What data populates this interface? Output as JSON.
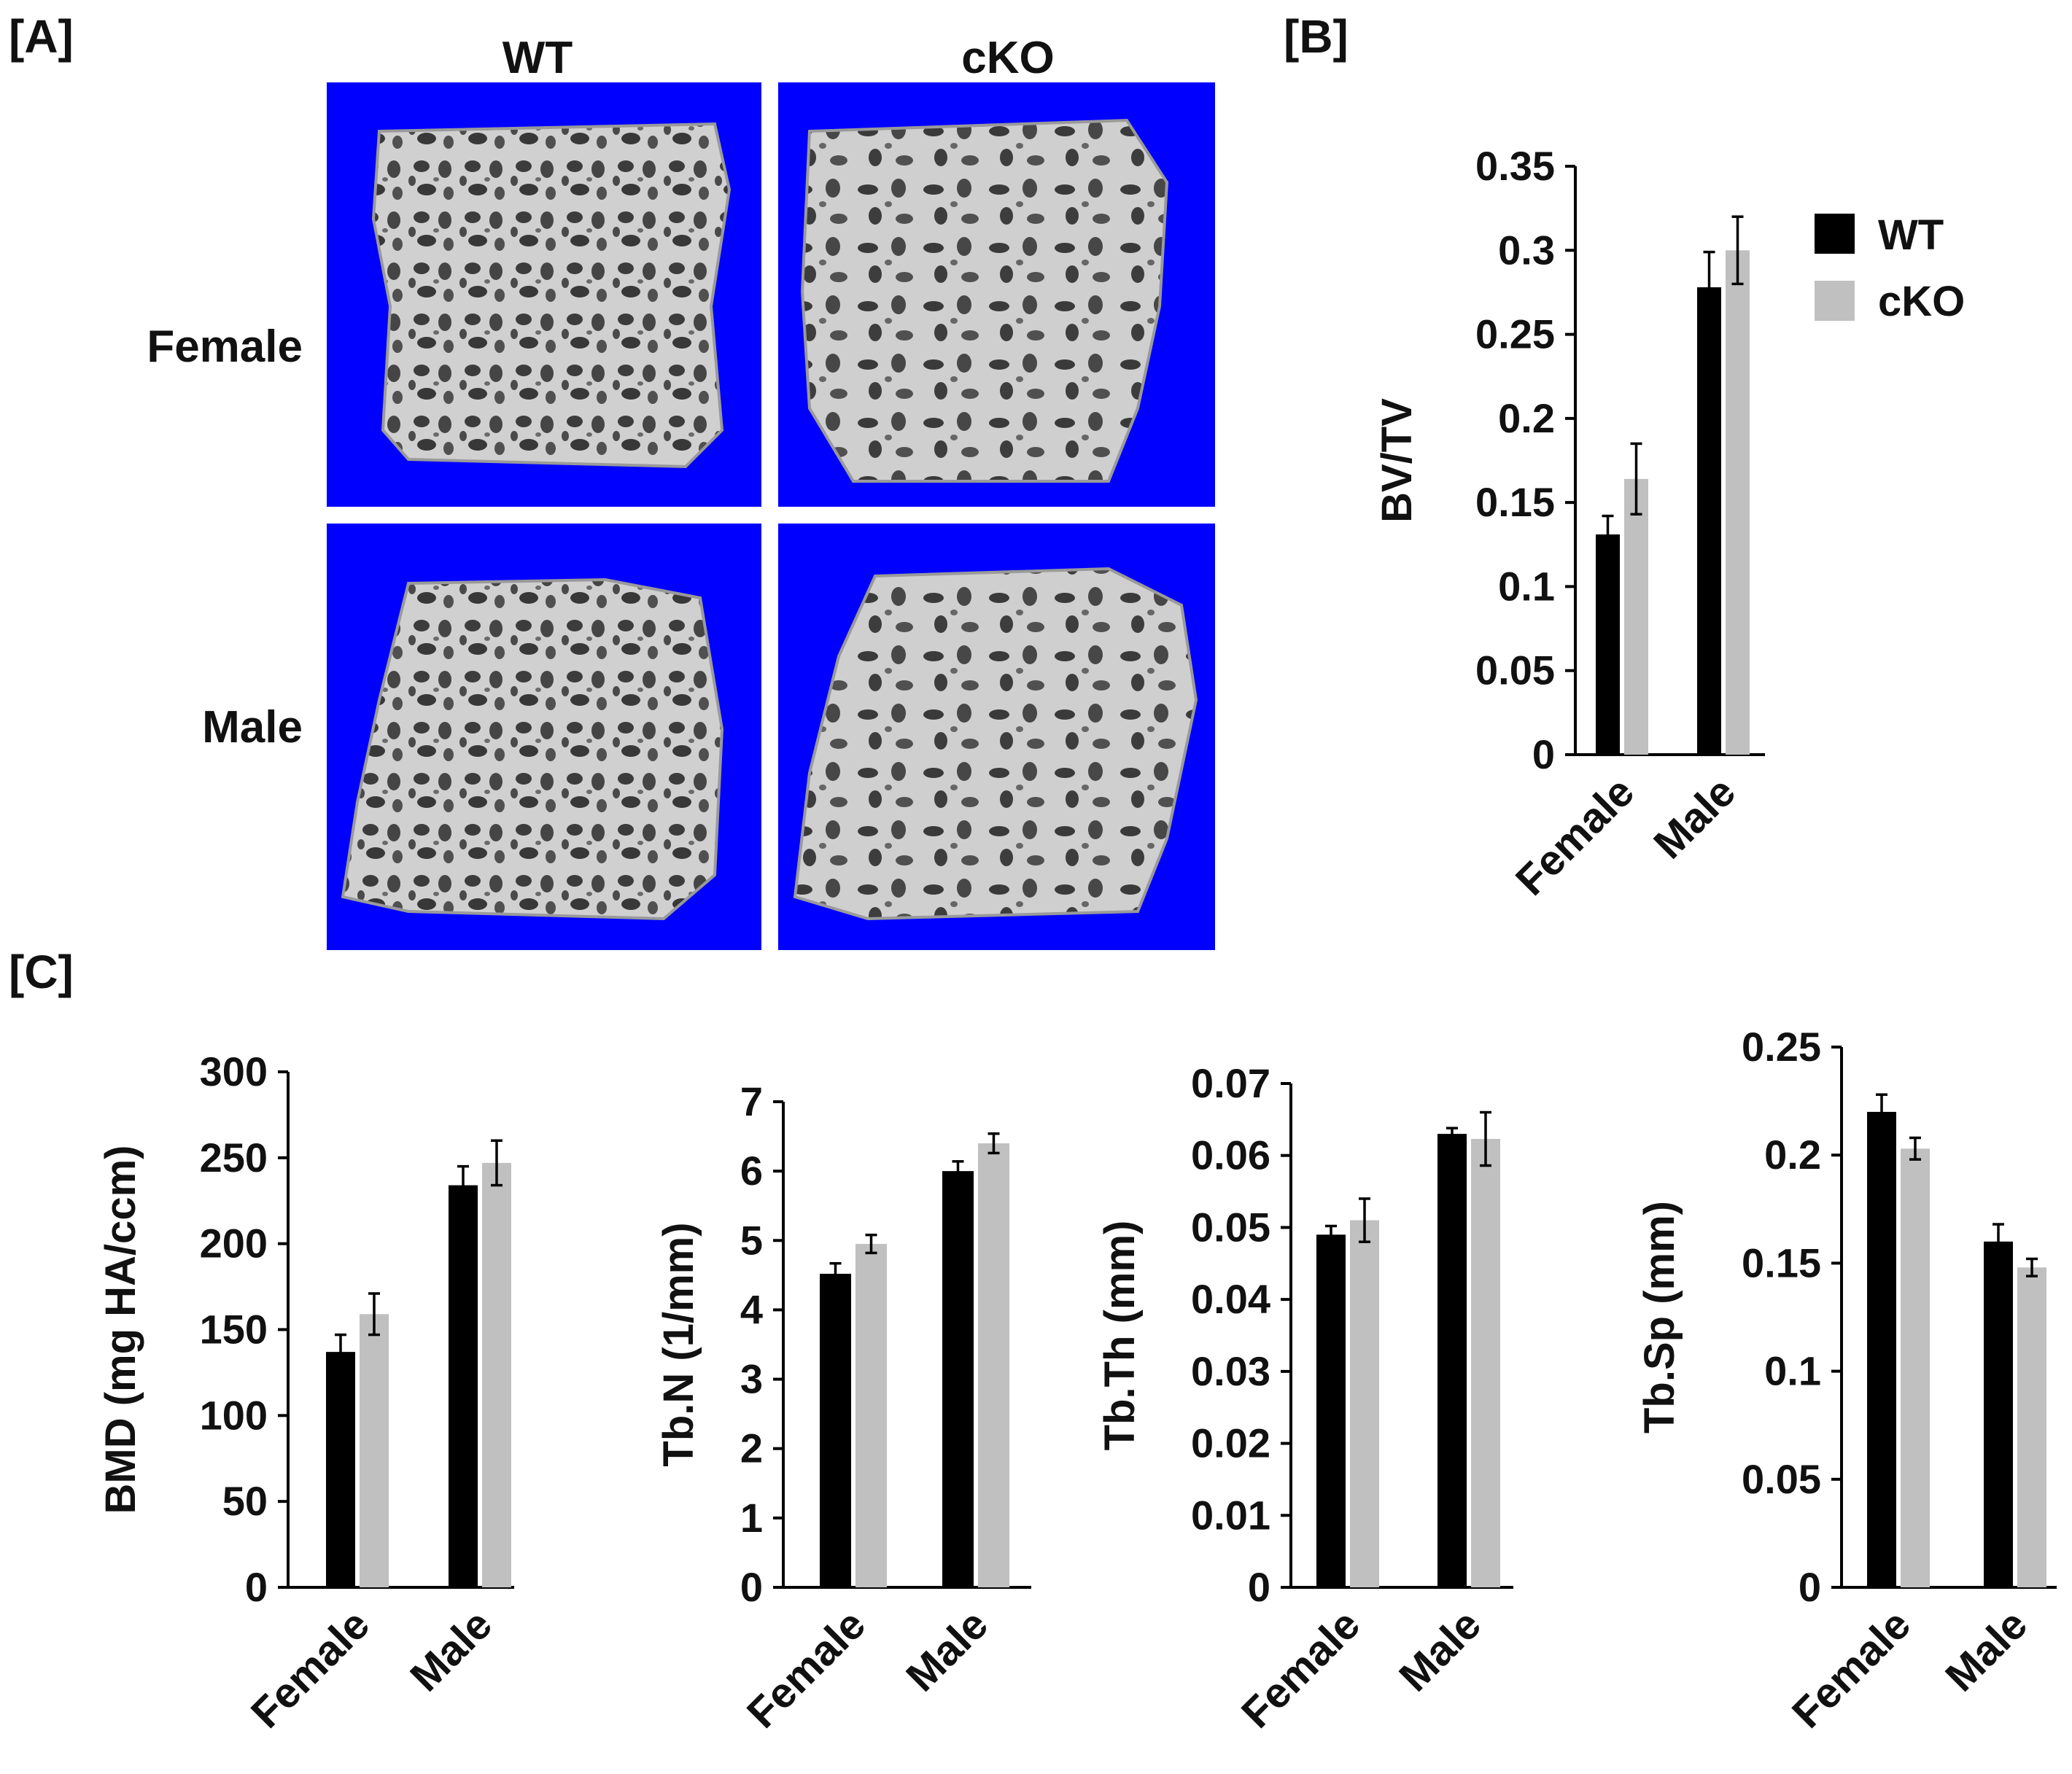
{
  "colors": {
    "wt": "#000000",
    "cko": "#c0c0c0",
    "image_background": "#0000ff",
    "bone": "#c8c8c8"
  },
  "panel_a": {
    "label": "[A]",
    "columns": [
      "WT",
      "cKO"
    ],
    "rows": [
      "Female",
      "Male"
    ],
    "tiles": [
      {
        "name": "female-wt",
        "description": "3D microCT trabecular bone, female WT",
        "icon": "trabecular-bone-render"
      },
      {
        "name": "female-cko",
        "description": "3D microCT trabecular bone, female cKO",
        "icon": "trabecular-bone-render"
      },
      {
        "name": "male-wt",
        "description": "3D microCT trabecular bone, male WT",
        "icon": "trabecular-bone-render"
      },
      {
        "name": "male-cko",
        "description": "3D microCT trabecular bone, male cKO",
        "icon": "trabecular-bone-render"
      }
    ]
  },
  "panel_b_label": "[B]",
  "panel_c_label": "[C]",
  "legend": [
    "WT",
    "cKO"
  ],
  "chart_data": [
    {
      "id": "bvtv",
      "type": "bar",
      "categories": [
        "Female",
        "Male"
      ],
      "series": [
        {
          "name": "WT",
          "values": [
            0.131,
            0.278
          ],
          "errors": [
            0.011,
            0.021
          ]
        },
        {
          "name": "cKO",
          "values": [
            0.164,
            0.3
          ],
          "errors": [
            0.021,
            0.02
          ]
        }
      ],
      "ylabel": "BV/TV",
      "ylim": [
        0,
        0.35
      ],
      "ticks": [
        "0",
        "0.05",
        "0.1",
        "0.15",
        "0.2",
        "0.25",
        "0.3",
        "0.35"
      ],
      "tick_values": [
        0,
        0.05,
        0.1,
        0.15,
        0.2,
        0.25,
        0.3,
        0.35
      ],
      "legend": "top-right"
    },
    {
      "id": "bmd",
      "type": "bar",
      "categories": [
        "Female",
        "Male"
      ],
      "series": [
        {
          "name": "WT",
          "values": [
            137,
            234
          ],
          "errors": [
            10,
            11
          ]
        },
        {
          "name": "cKO",
          "values": [
            159,
            247
          ],
          "errors": [
            12,
            13
          ]
        }
      ],
      "ylabel": "BMD (mg HA/ccm)",
      "ylim": [
        0,
        300
      ],
      "ticks": [
        "0",
        "50",
        "100",
        "150",
        "200",
        "250",
        "300"
      ],
      "tick_values": [
        0,
        50,
        100,
        150,
        200,
        250,
        300
      ]
    },
    {
      "id": "tbn",
      "type": "bar",
      "categories": [
        "Female",
        "Male"
      ],
      "series": [
        {
          "name": "WT",
          "values": [
            4.52,
            6.0
          ],
          "errors": [
            0.15,
            0.14
          ]
        },
        {
          "name": "cKO",
          "values": [
            4.95,
            6.4
          ],
          "errors": [
            0.13,
            0.14
          ]
        }
      ],
      "ylabel": "Tb.N (1/mm)",
      "ylim": [
        0,
        7
      ],
      "ticks": [
        "0",
        "1",
        "2",
        "3",
        "4",
        "5",
        "6",
        "7"
      ],
      "tick_values": [
        0,
        1,
        2,
        3,
        4,
        5,
        6,
        7
      ]
    },
    {
      "id": "tbth",
      "type": "bar",
      "categories": [
        "Female",
        "Male"
      ],
      "series": [
        {
          "name": "WT",
          "values": [
            0.049,
            0.063
          ],
          "errors": [
            0.0012,
            0.0008
          ]
        },
        {
          "name": "cKO",
          "values": [
            0.051,
            0.0623
          ],
          "errors": [
            0.003,
            0.0037
          ]
        }
      ],
      "ylabel": "Tb.Th (mm)",
      "ylim": [
        0,
        0.07
      ],
      "ticks": [
        "0",
        "0.01",
        "0.02",
        "0.03",
        "0.04",
        "0.05",
        "0.06",
        "0.07"
      ],
      "tick_values": [
        0,
        0.01,
        0.02,
        0.03,
        0.04,
        0.05,
        0.06,
        0.07
      ]
    },
    {
      "id": "tbsp",
      "type": "bar",
      "categories": [
        "Female",
        "Male"
      ],
      "series": [
        {
          "name": "WT",
          "values": [
            0.22,
            0.16
          ],
          "errors": [
            0.008,
            0.008
          ]
        },
        {
          "name": "cKO",
          "values": [
            0.203,
            0.148
          ],
          "errors": [
            0.005,
            0.004
          ]
        }
      ],
      "ylabel": "Tb.Sp (mm)",
      "ylim": [
        0,
        0.25
      ],
      "ticks": [
        "0",
        "0.05",
        "0.1",
        "0.15",
        "0.2",
        "0.25"
      ],
      "tick_values": [
        0,
        0.05,
        0.1,
        0.15,
        0.2,
        0.25
      ]
    }
  ]
}
